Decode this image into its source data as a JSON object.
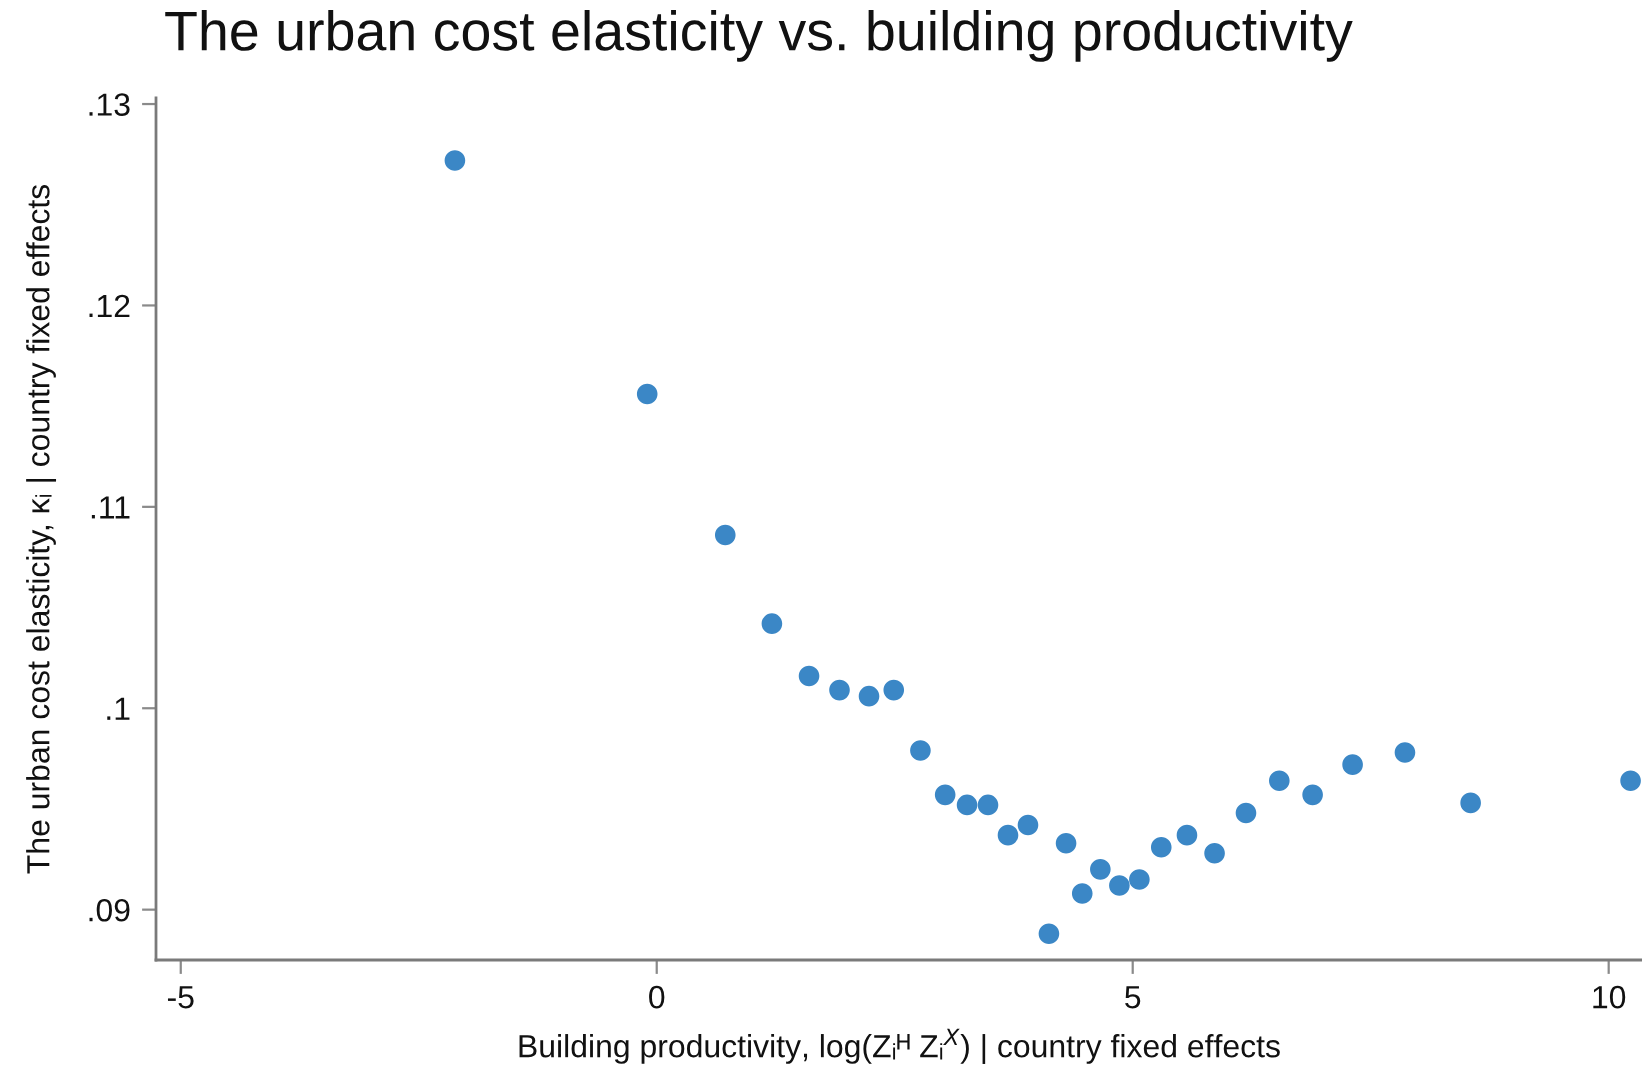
{
  "chart_data": {
    "type": "scatter",
    "title": "The urban cost elasticity vs. building productivity",
    "xlabel": "Building productivity, log(Zᵢᴴ Zᵢ$^{X}$) | country fixed effects",
    "ylabel": "The urban cost elasticity, κᵢ | country fixed effects",
    "x": [
      -2.12,
      -0.1,
      0.72,
      1.21,
      1.6,
      1.92,
      2.23,
      2.49,
      2.77,
      3.03,
      3.26,
      3.48,
      3.69,
      3.9,
      4.12,
      4.3,
      4.47,
      4.66,
      4.86,
      5.07,
      5.3,
      5.57,
      5.86,
      6.19,
      6.54,
      6.89,
      7.31,
      7.86,
      8.55,
      10.23
    ],
    "values": [
      0.1272,
      0.1156,
      0.1086,
      0.1042,
      0.1016,
      0.1009,
      0.1006,
      0.1009,
      0.0979,
      0.0957,
      0.0952,
      0.0952,
      0.0937,
      0.0942,
      0.0888,
      0.0933,
      0.0908,
      0.092,
      0.0912,
      0.0915,
      0.0931,
      0.0937,
      0.0928,
      0.0948,
      0.0964,
      0.0957,
      0.0972,
      0.0978,
      0.0953,
      0.0964
    ],
    "color": "#3b87c6",
    "marker": "circle",
    "grid": false,
    "xlim": [
      -5.26,
      10.35
    ],
    "ylim": [
      0.0875,
      0.1303
    ],
    "xticks": [
      -5,
      0,
      5,
      10
    ],
    "yticks": [
      {
        "value": 0.09,
        "label": ".09"
      },
      {
        "value": 0.1,
        "label": ".1"
      },
      {
        "value": 0.11,
        "label": ".11"
      },
      {
        "value": 0.12,
        "label": ".12"
      },
      {
        "value": 0.13,
        "label": ".13"
      }
    ]
  }
}
